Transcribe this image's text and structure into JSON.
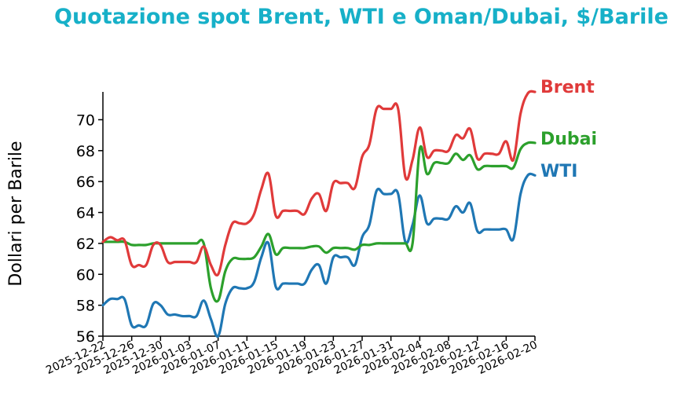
{
  "chart_data": {
    "type": "line",
    "title": "Quotazione spot Brent, WTI e Oman/Dubai, $/Barile",
    "title_color": "#17b0c8",
    "xlabel": "",
    "ylabel": "Dollari per Barile",
    "ylim": [
      56,
      71.8
    ],
    "yticks": [
      56,
      58,
      60,
      62,
      64,
      66,
      68,
      70
    ],
    "xlim": [
      "2025-12-22",
      "2026-02-20"
    ],
    "xticks": [
      "2025-12-22",
      "2025-12-26",
      "2025-12-30",
      "2026-01-03",
      "2026-01-07",
      "2026-01-11",
      "2026-01-15",
      "2026-01-19",
      "2026-01-23",
      "2026-01-27",
      "2026-01-31",
      "2026-02-04",
      "2026-02-08",
      "2026-02-12",
      "2026-02-16",
      "2026-02-20"
    ],
    "grid": false,
    "legend": "right, labels at line ends",
    "series": [
      {
        "name": "Brent",
        "color": "#e03a3a",
        "points": [
          [
            "2025-12-22",
            62.1
          ],
          [
            "2025-12-23",
            62.4
          ],
          [
            "2025-12-24",
            62.2
          ],
          [
            "2025-12-25",
            62.2
          ],
          [
            "2025-12-26",
            60.6
          ],
          [
            "2025-12-27",
            60.6
          ],
          [
            "2025-12-28",
            60.6
          ],
          [
            "2025-12-29",
            61.9
          ],
          [
            "2025-12-30",
            61.9
          ],
          [
            "2025-12-31",
            60.8
          ],
          [
            "2026-01-01",
            60.8
          ],
          [
            "2026-01-02",
            60.8
          ],
          [
            "2026-01-03",
            60.8
          ],
          [
            "2026-01-04",
            60.8
          ],
          [
            "2026-01-05",
            61.8
          ],
          [
            "2026-01-06",
            60.6
          ],
          [
            "2026-01-07",
            60.0
          ],
          [
            "2026-01-08",
            61.9
          ],
          [
            "2026-01-09",
            63.3
          ],
          [
            "2026-01-10",
            63.3
          ],
          [
            "2026-01-11",
            63.3
          ],
          [
            "2026-01-12",
            63.9
          ],
          [
            "2026-01-13",
            65.5
          ],
          [
            "2026-01-14",
            66.5
          ],
          [
            "2026-01-15",
            63.8
          ],
          [
            "2026-01-16",
            64.1
          ],
          [
            "2026-01-17",
            64.1
          ],
          [
            "2026-01-18",
            64.1
          ],
          [
            "2026-01-19",
            63.9
          ],
          [
            "2026-01-20",
            64.9
          ],
          [
            "2026-01-21",
            65.2
          ],
          [
            "2026-01-22",
            64.1
          ],
          [
            "2026-01-23",
            65.9
          ],
          [
            "2026-01-24",
            65.9
          ],
          [
            "2026-01-25",
            65.9
          ],
          [
            "2026-01-26",
            65.6
          ],
          [
            "2026-01-27",
            67.6
          ],
          [
            "2026-01-28",
            68.4
          ],
          [
            "2026-01-29",
            70.7
          ],
          [
            "2026-01-30",
            70.7
          ],
          [
            "2026-01-31",
            70.7
          ],
          [
            "2026-02-01",
            70.7
          ],
          [
            "2026-02-02",
            66.3
          ],
          [
            "2026-02-03",
            67.4
          ],
          [
            "2026-02-04",
            69.5
          ],
          [
            "2026-02-05",
            67.6
          ],
          [
            "2026-02-06",
            68.0
          ],
          [
            "2026-02-07",
            68.0
          ],
          [
            "2026-02-08",
            68.0
          ],
          [
            "2026-02-09",
            69.0
          ],
          [
            "2026-02-10",
            68.8
          ],
          [
            "2026-02-11",
            69.4
          ],
          [
            "2026-02-12",
            67.5
          ],
          [
            "2026-02-13",
            67.8
          ],
          [
            "2026-02-14",
            67.8
          ],
          [
            "2026-02-15",
            67.8
          ],
          [
            "2026-02-16",
            68.6
          ],
          [
            "2026-02-17",
            67.4
          ],
          [
            "2026-02-18",
            70.4
          ],
          [
            "2026-02-19",
            71.7
          ],
          [
            "2026-02-20",
            71.8
          ]
        ]
      },
      {
        "name": "Dubai",
        "color": "#2ca02c",
        "points": [
          [
            "2025-12-22",
            62.1
          ],
          [
            "2025-12-23",
            62.1
          ],
          [
            "2025-12-24",
            62.1
          ],
          [
            "2025-12-25",
            62.1
          ],
          [
            "2025-12-26",
            61.9
          ],
          [
            "2025-12-27",
            61.9
          ],
          [
            "2025-12-28",
            61.9
          ],
          [
            "2025-12-29",
            62.0
          ],
          [
            "2025-12-30",
            62.0
          ],
          [
            "2025-12-31",
            62.0
          ],
          [
            "2026-01-01",
            62.0
          ],
          [
            "2026-01-02",
            62.0
          ],
          [
            "2026-01-03",
            62.0
          ],
          [
            "2026-01-04",
            62.0
          ],
          [
            "2026-01-05",
            62.0
          ],
          [
            "2026-01-06",
            59.1
          ],
          [
            "2026-01-07",
            58.3
          ],
          [
            "2026-01-08",
            60.2
          ],
          [
            "2026-01-09",
            61.0
          ],
          [
            "2026-01-10",
            61.0
          ],
          [
            "2026-01-11",
            61.0
          ],
          [
            "2026-01-12",
            61.1
          ],
          [
            "2026-01-13",
            61.8
          ],
          [
            "2026-01-14",
            62.6
          ],
          [
            "2026-01-15",
            61.3
          ],
          [
            "2026-01-16",
            61.7
          ],
          [
            "2026-01-17",
            61.7
          ],
          [
            "2026-01-18",
            61.7
          ],
          [
            "2026-01-19",
            61.7
          ],
          [
            "2026-01-20",
            61.8
          ],
          [
            "2026-01-21",
            61.8
          ],
          [
            "2026-01-22",
            61.4
          ],
          [
            "2026-01-23",
            61.7
          ],
          [
            "2026-01-24",
            61.7
          ],
          [
            "2026-01-25",
            61.7
          ],
          [
            "2026-01-26",
            61.6
          ],
          [
            "2026-01-27",
            61.9
          ],
          [
            "2026-01-28",
            61.9
          ],
          [
            "2026-01-29",
            62.0
          ],
          [
            "2026-01-30",
            62.0
          ],
          [
            "2026-01-31",
            62.0
          ],
          [
            "2026-02-01",
            62.0
          ],
          [
            "2026-02-02",
            62.0
          ],
          [
            "2026-02-03",
            62.0
          ],
          [
            "2026-02-04",
            68.1
          ],
          [
            "2026-02-05",
            66.5
          ],
          [
            "2026-02-06",
            67.2
          ],
          [
            "2026-02-07",
            67.2
          ],
          [
            "2026-02-08",
            67.2
          ],
          [
            "2026-02-09",
            67.8
          ],
          [
            "2026-02-10",
            67.4
          ],
          [
            "2026-02-11",
            67.7
          ],
          [
            "2026-02-12",
            66.8
          ],
          [
            "2026-02-13",
            67.0
          ],
          [
            "2026-02-14",
            67.0
          ],
          [
            "2026-02-15",
            67.0
          ],
          [
            "2026-02-16",
            67.0
          ],
          [
            "2026-02-17",
            66.9
          ],
          [
            "2026-02-18",
            68.1
          ],
          [
            "2026-02-19",
            68.5
          ],
          [
            "2026-02-20",
            68.5
          ]
        ]
      },
      {
        "name": "WTI",
        "color": "#1f77b4",
        "points": [
          [
            "2025-12-22",
            58.0
          ],
          [
            "2025-12-23",
            58.4
          ],
          [
            "2025-12-24",
            58.4
          ],
          [
            "2025-12-25",
            58.4
          ],
          [
            "2025-12-26",
            56.7
          ],
          [
            "2025-12-27",
            56.7
          ],
          [
            "2025-12-28",
            56.7
          ],
          [
            "2025-12-29",
            58.1
          ],
          [
            "2025-12-30",
            58.0
          ],
          [
            "2025-12-31",
            57.4
          ],
          [
            "2026-01-01",
            57.4
          ],
          [
            "2026-01-02",
            57.3
          ],
          [
            "2026-01-03",
            57.3
          ],
          [
            "2026-01-04",
            57.3
          ],
          [
            "2026-01-05",
            58.3
          ],
          [
            "2026-01-06",
            57.1
          ],
          [
            "2026-01-07",
            56.0
          ],
          [
            "2026-01-08",
            58.1
          ],
          [
            "2026-01-09",
            59.1
          ],
          [
            "2026-01-10",
            59.1
          ],
          [
            "2026-01-11",
            59.1
          ],
          [
            "2026-01-12",
            59.5
          ],
          [
            "2026-01-13",
            61.1
          ],
          [
            "2026-01-14",
            62.0
          ],
          [
            "2026-01-15",
            59.2
          ],
          [
            "2026-01-16",
            59.4
          ],
          [
            "2026-01-17",
            59.4
          ],
          [
            "2026-01-18",
            59.4
          ],
          [
            "2026-01-19",
            59.4
          ],
          [
            "2026-01-20",
            60.3
          ],
          [
            "2026-01-21",
            60.6
          ],
          [
            "2026-01-22",
            59.4
          ],
          [
            "2026-01-23",
            61.1
          ],
          [
            "2026-01-24",
            61.1
          ],
          [
            "2026-01-25",
            61.1
          ],
          [
            "2026-01-26",
            60.6
          ],
          [
            "2026-01-27",
            62.4
          ],
          [
            "2026-01-28",
            63.2
          ],
          [
            "2026-01-29",
            65.4
          ],
          [
            "2026-01-30",
            65.2
          ],
          [
            "2026-01-31",
            65.2
          ],
          [
            "2026-02-01",
            65.2
          ],
          [
            "2026-02-02",
            62.1
          ],
          [
            "2026-02-03",
            63.2
          ],
          [
            "2026-02-04",
            65.1
          ],
          [
            "2026-02-05",
            63.3
          ],
          [
            "2026-02-06",
            63.6
          ],
          [
            "2026-02-07",
            63.6
          ],
          [
            "2026-02-08",
            63.6
          ],
          [
            "2026-02-09",
            64.4
          ],
          [
            "2026-02-10",
            64.0
          ],
          [
            "2026-02-11",
            64.6
          ],
          [
            "2026-02-12",
            62.8
          ],
          [
            "2026-02-13",
            62.9
          ],
          [
            "2026-02-14",
            62.9
          ],
          [
            "2026-02-15",
            62.9
          ],
          [
            "2026-02-16",
            62.9
          ],
          [
            "2026-02-17",
            62.3
          ],
          [
            "2026-02-18",
            65.2
          ],
          [
            "2026-02-19",
            66.4
          ],
          [
            "2026-02-20",
            66.4
          ]
        ]
      }
    ]
  }
}
